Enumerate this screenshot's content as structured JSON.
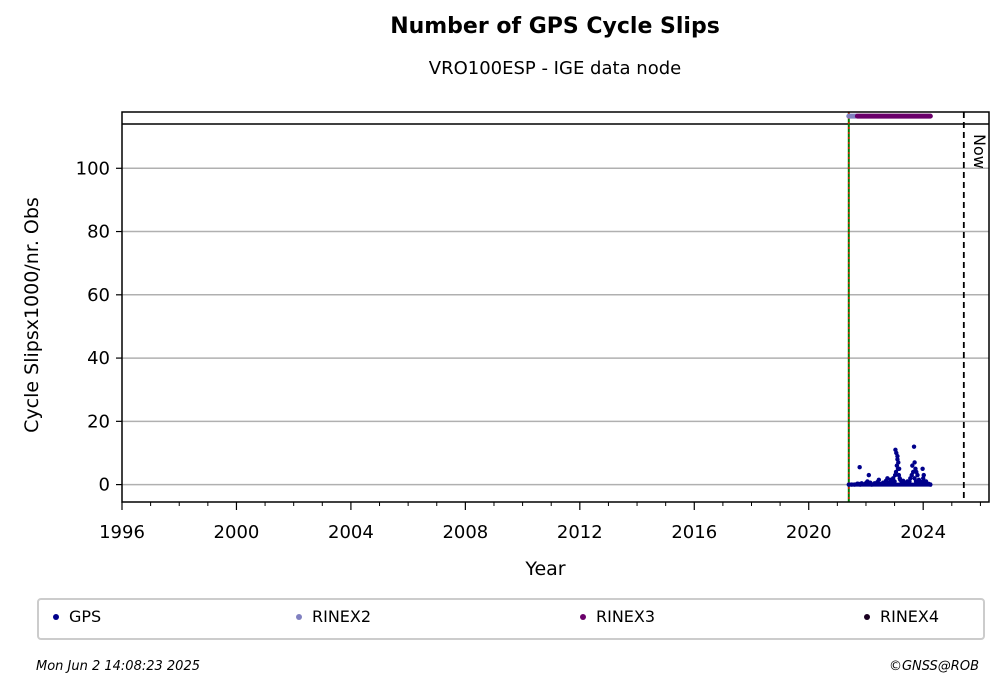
{
  "chart_data": {
    "type": "scatter",
    "title": "Number of GPS Cycle Slips",
    "subtitle": "VRO100ESP - IGE data node",
    "xlabel": "Year",
    "ylabel": "Cycle Slipsx1000/nr. Obs",
    "xlim": [
      1996,
      2026.3
    ],
    "ylim": [
      -5.5,
      114
    ],
    "xticks": [
      1996,
      2000,
      2004,
      2008,
      2012,
      2016,
      2020,
      2024
    ],
    "yticks": [
      0,
      20,
      40,
      60,
      80,
      100
    ],
    "grid": "horizontal",
    "markers": {
      "start_line": 2021.4,
      "now_line": 2025.42,
      "now_label": "Now"
    },
    "series": [
      {
        "name": "GPS",
        "color": "#00008b",
        "x": [
          2021.4,
          2021.5,
          2021.6,
          2021.7,
          2021.75,
          2021.8,
          2021.85,
          2021.9,
          2022.0,
          2022.05,
          2022.1,
          2022.15,
          2022.2,
          2022.3,
          2022.4,
          2022.5,
          2022.6,
          2022.7,
          2022.8,
          2022.85,
          2022.9,
          2022.95,
          2023.0,
          2023.02,
          2023.05,
          2023.08,
          2023.1,
          2023.12,
          2023.15,
          2023.18,
          2023.2,
          2023.25,
          2023.3,
          2023.35,
          2023.4,
          2023.45,
          2023.5,
          2023.55,
          2023.6,
          2023.62,
          2023.65,
          2023.7,
          2023.75,
          2023.8,
          2023.85,
          2023.9,
          2023.95,
          2024.0,
          2024.05,
          2024.1,
          2024.15,
          2024.2,
          2024.25,
          2021.78,
          2022.1,
          2022.45,
          2022.75,
          2023.03,
          2023.06,
          2023.1,
          2023.13,
          2023.16,
          2023.52,
          2023.68,
          2023.7,
          2023.73,
          2023.76,
          2023.8,
          2023.98,
          2024.02,
          2024.1
        ],
        "values": [
          0,
          0,
          0,
          0.3,
          0.2,
          0,
          0.4,
          0.1,
          0.5,
          1,
          0.3,
          0.6,
          0,
          0.4,
          0.8,
          0.2,
          0.6,
          1.2,
          0.5,
          1.5,
          0.8,
          2,
          1,
          3,
          4,
          6,
          8,
          5,
          3,
          2,
          1.5,
          0.8,
          1.2,
          0.6,
          0.5,
          1,
          0.4,
          2,
          3,
          6,
          4,
          2,
          1,
          0.6,
          1.5,
          0.4,
          0.8,
          2,
          1,
          0.5,
          0.3,
          0.2,
          0,
          5.5,
          3,
          1.5,
          2,
          11,
          10,
          9,
          7,
          5,
          1,
          12,
          7,
          5,
          4,
          3,
          5,
          3,
          1
        ]
      },
      {
        "name": "RINEX2",
        "color": "#8080c0",
        "x": [
          2021.4,
          2021.65
        ],
        "values": [
          116.5,
          116.5
        ]
      },
      {
        "name": "RINEX3",
        "color": "#6a006a",
        "x": [
          2021.7,
          2024.25
        ],
        "values": [
          116.5,
          116.5
        ]
      },
      {
        "name": "RINEX4",
        "color": "#1a0020",
        "x": [],
        "values": []
      }
    ]
  },
  "footer": {
    "timestamp": "Mon Jun  2 14:08:23 2025",
    "credit": "©GNSS@ROB"
  }
}
